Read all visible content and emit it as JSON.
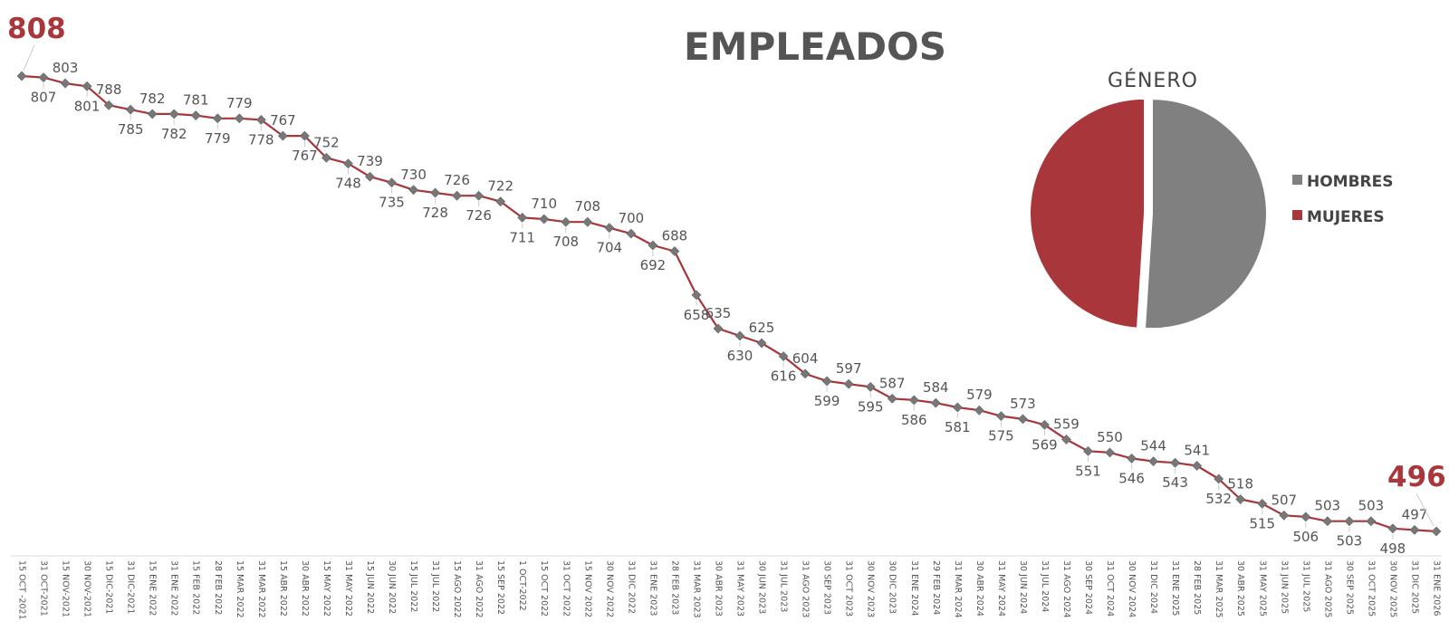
{
  "colors": {
    "line": "#a8363a",
    "marker": "#777777",
    "hombres": "#808080",
    "mujeres": "#a8363a",
    "highlight": "#a8363a"
  },
  "chart_data": [
    {
      "type": "line",
      "title": "EMPLEADOS",
      "xlabel": "",
      "ylabel": "",
      "ylim": [
        490,
        815
      ],
      "grid": false,
      "legend": "none",
      "categories": [
        "15 OCT -2021",
        "31 OCT-2021",
        "15 NOV-2021",
        "30 NOV-2021",
        "15 DIC-2021",
        "31 DIC-2021",
        "15 ENE 2022",
        "31 ENE 2022",
        "15 FEB 2022",
        "28 FEB 2022",
        "15 MAR 2022",
        "31 MAR 2022",
        "15 ABR 2022",
        "30 ABR 2022",
        "15 MAY 2022",
        "31 MAY 2022",
        "15 JUN 2022",
        "30 JUN 2022",
        "15 JUL 2022",
        "31 JUL 2022",
        "15 AGO 2022",
        "31 AGO 2022",
        "15 SEP 2022",
        "1 OCT-2022",
        "15 OCT 2022",
        "31 OCT 2022",
        "15 NOV 2022",
        "30 NOV 2022",
        "31 DIC 2022",
        "31 ENE 2023",
        "28 FEB 2023",
        "31 MAR 2023",
        "30 ABR 2023",
        "31 MAY 2023",
        "30 JUN 2023",
        "31 JUL 2023",
        "31 AGO 2023",
        "30 SEP 2023",
        "31 OCT 2023",
        "30 NOV 2023",
        "30 DIC 2023",
        "31 ENE 2024",
        "29 FEB 2024",
        "31 MAR 2024",
        "30 ABR 2024",
        "31 MAY 2024",
        "30 JUN 2024",
        "31 JUL 2024",
        "31 AGO 2024",
        "30 SEP 2024",
        "31 OCT 2024",
        "30 NOV 2024",
        "31 DIC 2024",
        "31 ENE 2025",
        "28 FEB 2025",
        "31 MAR 2025",
        "30 ABR 2025",
        "31 MAY 2025",
        "31 JUN 2025",
        "31 JUL 2025",
        "31 AGO 2025",
        "30 SEP 2025",
        "31 OCT 2025",
        "30 NOV 2025",
        "31 DIC 2025",
        "31 ENE 2026"
      ],
      "values": [
        808,
        807,
        803,
        801,
        788,
        785,
        782,
        782,
        781,
        779,
        779,
        778,
        767,
        767,
        752,
        748,
        739,
        735,
        730,
        728,
        726,
        726,
        722,
        711,
        710,
        708,
        708,
        704,
        700,
        692,
        688,
        658,
        635,
        630,
        625,
        616,
        604,
        599,
        597,
        595,
        587,
        586,
        584,
        581,
        579,
        575,
        573,
        569,
        559,
        551,
        550,
        546,
        544,
        543,
        541,
        532,
        518,
        515,
        507,
        506,
        503,
        503,
        503,
        498,
        497,
        496
      ],
      "highlight_labels": {
        "first": "808",
        "last": "496"
      }
    },
    {
      "type": "pie",
      "title": "GÉNERO",
      "legend": "right",
      "labels": [
        "HOMBRES",
        "MUJERES"
      ],
      "values": [
        51,
        49
      ]
    }
  ]
}
